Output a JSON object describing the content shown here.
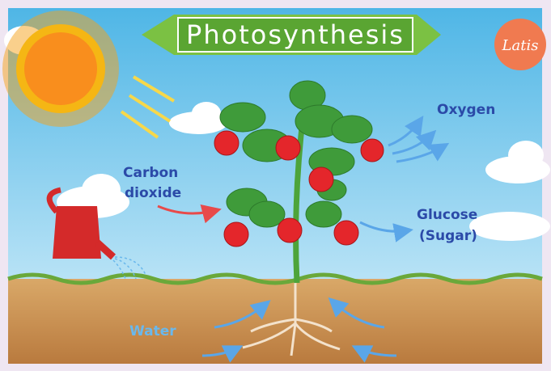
{
  "header": {
    "title": "Photosynthesis",
    "logo": "Latis"
  },
  "labels": {
    "oxygen": "Oxygen",
    "carbon_dioxide": [
      "Carbon",
      "dioxide"
    ],
    "glucose": [
      "Glucose",
      "(Sugar)"
    ],
    "water": "Water"
  }
}
